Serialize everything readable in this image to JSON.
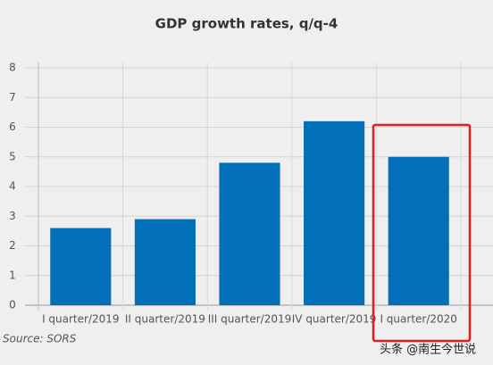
{
  "chart_data": {
    "type": "bar",
    "title": "GDP growth rates, q/q-4",
    "categories": [
      "I quarter/2019",
      "II quarter/2019",
      "III quarter/2019",
      "IV quarter/2019",
      "I quarter/2020"
    ],
    "values": [
      2.6,
      2.9,
      4.8,
      6.2,
      5.0
    ],
    "color": "#0270b8",
    "ylim": [
      0,
      8
    ],
    "yticks": [
      0,
      1,
      2,
      3,
      4,
      5,
      6,
      7,
      8
    ],
    "grid": true,
    "source": "Source: SORS"
  },
  "watermark": "头条 @南生今世说"
}
